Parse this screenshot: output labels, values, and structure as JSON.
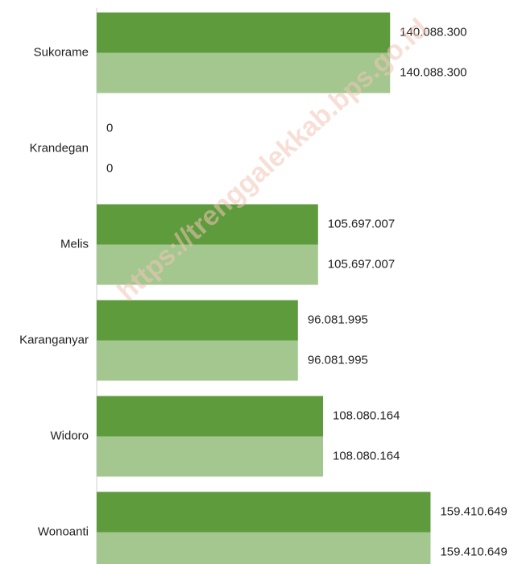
{
  "chart_data": {
    "type": "barh",
    "watermark": "https://trenggalekkab.bps.go.id",
    "categories": [
      "Sukorame",
      "Krandegan",
      "Melis",
      "Karanganyar",
      "Widoro",
      "Wonoanti"
    ],
    "series": [
      {
        "color": "#5e9b3d",
        "values": [
          140088300,
          0,
          105697007,
          96081995,
          108080164,
          159410649
        ],
        "value_labels": [
          "140.088.300",
          "0",
          "105.697.007",
          "96.081.995",
          "108.080.164",
          "159.410.649"
        ]
      },
      {
        "color": "#a3c78f",
        "values": [
          140088300,
          0,
          105697007,
          96081995,
          108080164,
          159410649
        ],
        "value_labels": [
          "140.088.300",
          "0",
          "105.697.007",
          "96.081.995",
          "108.080.164",
          "159.410.649"
        ]
      }
    ],
    "xlim": [
      0,
      200000000
    ]
  }
}
